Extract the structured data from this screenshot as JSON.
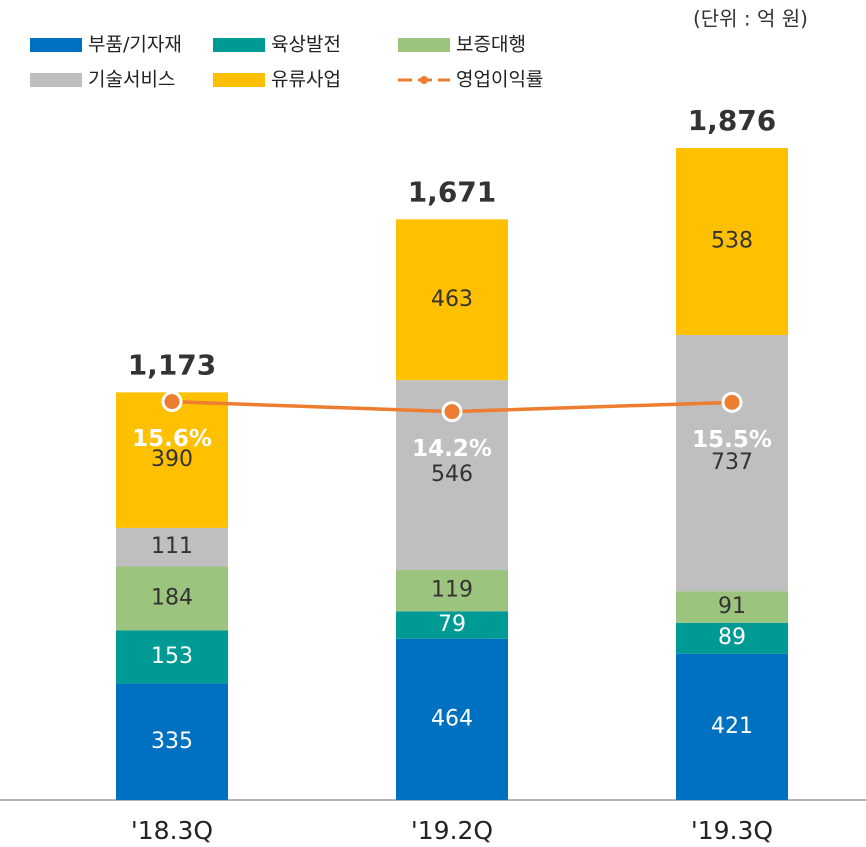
{
  "chart_data": {
    "type": "stacked_bar_line",
    "unit_note": "(단위 : 억 원)",
    "categories": [
      "'18.3Q",
      "'19.2Q",
      "'19.3Q"
    ],
    "series": [
      {
        "name": "부품/기자재",
        "color": "#0070c0",
        "values": [
          335,
          464,
          421
        ]
      },
      {
        "name": "육상발전",
        "color": "#009a94",
        "values": [
          153,
          79,
          89
        ]
      },
      {
        "name": "보증대행",
        "color": "#9cc47e",
        "values": [
          184,
          119,
          91
        ]
      },
      {
        "name": "기술서비스",
        "color": "#bfbfbf",
        "values": [
          111,
          546,
          737
        ]
      },
      {
        "name": "유류사업",
        "color": "#ffc000",
        "values": [
          390,
          463,
          538
        ]
      },
      {
        "name": "영업이익률",
        "color": "#ed7d31",
        "type": "line",
        "axis": "y2",
        "values": [
          15.6,
          14.2,
          15.5
        ],
        "value_labels": [
          "15.6%",
          "14.2%",
          "15.5%"
        ]
      }
    ],
    "totals": {
      "values": [
        1173,
        1671,
        1876
      ],
      "value_labels": [
        "1,173",
        "1,671",
        "1,876"
      ]
    },
    "ylim": [
      0,
      2000
    ],
    "y2lim": [
      -40,
      57
    ]
  }
}
